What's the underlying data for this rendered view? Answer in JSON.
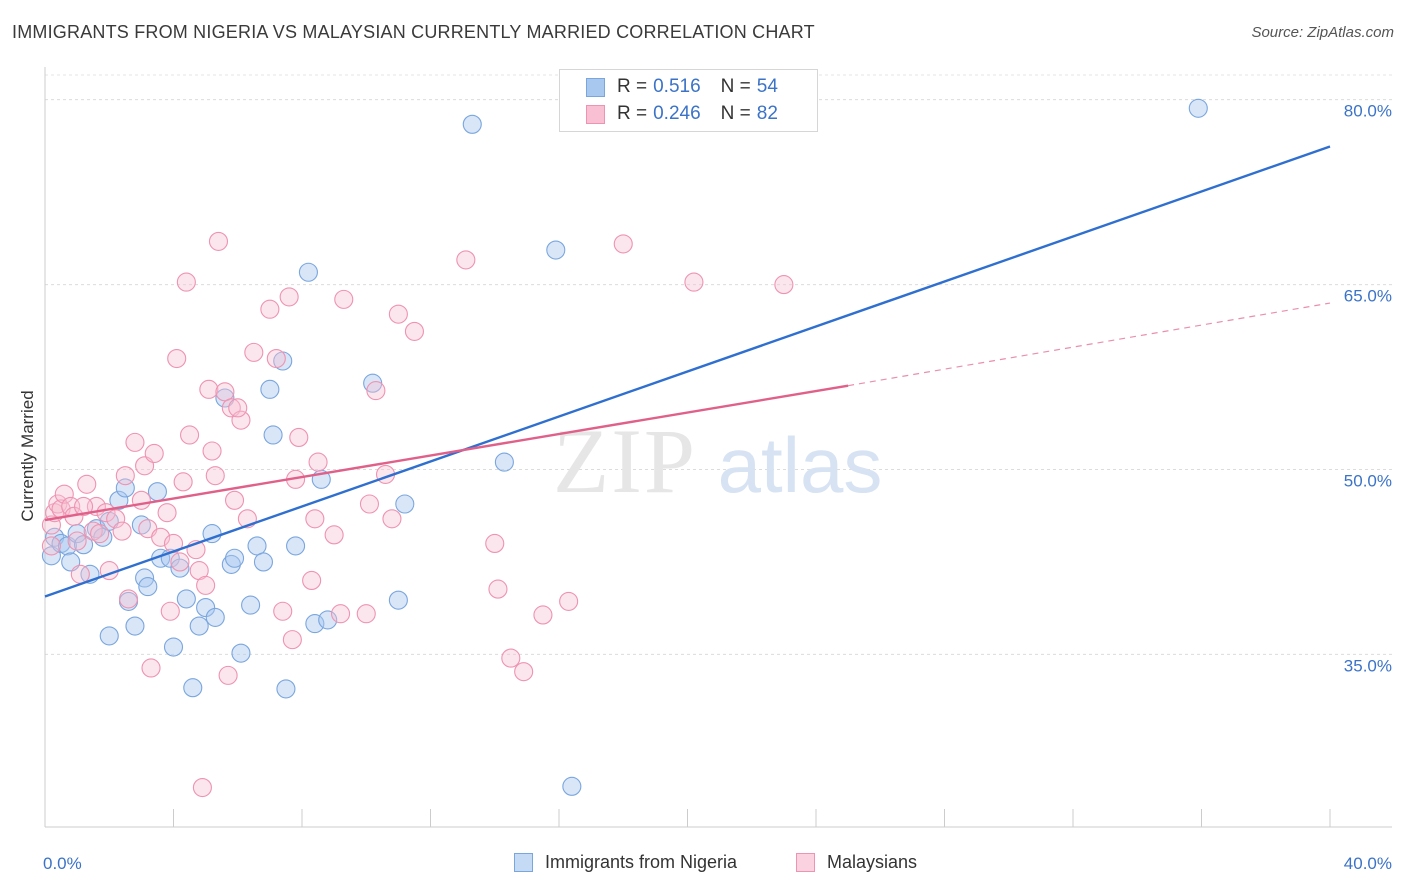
{
  "title": "IMMIGRANTS FROM NIGERIA VS MALAYSIAN CURRENTLY MARRIED CORRELATION CHART",
  "source": "Source: ZipAtlas.com",
  "watermark": {
    "zip": "ZIP",
    "atlas": "atlas"
  },
  "legend_top": [
    {
      "r_label": "R =",
      "r_value": "0.516",
      "n_label": "N =",
      "n_value": "54",
      "color": "#a8c8f0",
      "border": "#7aa6de"
    },
    {
      "r_label": "R =",
      "r_value": "0.246",
      "n_label": "N =",
      "n_value": "82",
      "color": "#f8c0d2",
      "border": "#ee93b1"
    }
  ],
  "legend_bottom": [
    {
      "label": "Immigrants from Nigeria",
      "color": "#c5dbf5",
      "border": "#7aa6de"
    },
    {
      "label": "Malaysians",
      "color": "#fbd3e0",
      "border": "#ee93b1"
    }
  ],
  "chart_data": {
    "type": "scatter",
    "title": "IMMIGRANTS FROM NIGERIA VS MALAYSIAN CURRENTLY MARRIED CORRELATION CHART",
    "xlabel": "",
    "ylabel": "Currently Married",
    "xlim": [
      0,
      40
    ],
    "ylim": [
      21,
      82
    ],
    "x_tick_labels": [
      {
        "value": 0,
        "label": "0.0%"
      },
      {
        "value": 40,
        "label": "40.0%"
      }
    ],
    "y_tick_labels": [
      {
        "value": 35,
        "label": "35.0%"
      },
      {
        "value": 50,
        "label": "50.0%"
      },
      {
        "value": 65,
        "label": "65.0%"
      },
      {
        "value": 80,
        "label": "80.0%"
      }
    ],
    "x_minor_ticks": [
      4,
      8,
      12,
      16,
      20,
      24,
      28,
      32,
      36,
      40
    ],
    "grid": true,
    "legend_position": "top-center",
    "series": [
      {
        "name": "Immigrants from Nigeria",
        "color": "#7aa6de",
        "fill": "rgba(168,200,240,0.45)",
        "trend_color": "#2f6fcf",
        "trend": {
          "x0": 0,
          "y0": 39.7,
          "x1": 40,
          "y1": 76.2
        },
        "points": [
          [
            0.2,
            43.0
          ],
          [
            0.3,
            44.5
          ],
          [
            0.5,
            44.0
          ],
          [
            0.7,
            43.8
          ],
          [
            0.8,
            42.5
          ],
          [
            1.0,
            44.8
          ],
          [
            1.2,
            43.9
          ],
          [
            1.4,
            41.5
          ],
          [
            1.6,
            45.2
          ],
          [
            1.8,
            44.5
          ],
          [
            2.0,
            45.8
          ],
          [
            2.3,
            47.5
          ],
          [
            2.5,
            48.5
          ],
          [
            2.6,
            39.3
          ],
          [
            2.8,
            37.3
          ],
          [
            3.0,
            45.5
          ],
          [
            3.1,
            41.2
          ],
          [
            3.2,
            40.5
          ],
          [
            3.5,
            48.2
          ],
          [
            3.6,
            42.8
          ],
          [
            3.9,
            42.8
          ],
          [
            4.0,
            35.6
          ],
          [
            4.2,
            42.0
          ],
          [
            4.4,
            39.5
          ],
          [
            4.6,
            32.3
          ],
          [
            4.8,
            37.3
          ],
          [
            5.0,
            38.8
          ],
          [
            5.2,
            44.8
          ],
          [
            5.3,
            38.0
          ],
          [
            5.6,
            55.8
          ],
          [
            5.8,
            42.3
          ],
          [
            5.9,
            42.8
          ],
          [
            6.1,
            35.1
          ],
          [
            6.4,
            39.0
          ],
          [
            6.6,
            43.8
          ],
          [
            6.8,
            42.5
          ],
          [
            7.0,
            56.5
          ],
          [
            7.1,
            52.8
          ],
          [
            7.4,
            58.8
          ],
          [
            7.5,
            32.2
          ],
          [
            7.8,
            43.8
          ],
          [
            8.2,
            66.0
          ],
          [
            8.4,
            37.5
          ],
          [
            8.6,
            49.2
          ],
          [
            8.8,
            37.8
          ],
          [
            10.2,
            57.0
          ],
          [
            11.0,
            39.4
          ],
          [
            11.2,
            47.2
          ],
          [
            2.0,
            36.5
          ],
          [
            13.3,
            78.0
          ],
          [
            14.3,
            50.6
          ],
          [
            15.9,
            67.8
          ],
          [
            16.4,
            24.3
          ],
          [
            35.9,
            79.3
          ]
        ]
      },
      {
        "name": "Malaysians",
        "color": "#ee93b1",
        "fill": "rgba(248,192,210,0.40)",
        "trend_color": "#e0608a",
        "trend": {
          "x0": 0,
          "y0": 45.9,
          "x1": 25,
          "y1": 56.8,
          "dash_to_x": 40,
          "dash_to_y": 63.5
        },
        "points": [
          [
            0.2,
            45.5
          ],
          [
            0.3,
            46.5
          ],
          [
            0.4,
            47.2
          ],
          [
            0.5,
            46.8
          ],
          [
            0.6,
            48.0
          ],
          [
            0.8,
            47.0
          ],
          [
            0.9,
            46.2
          ],
          [
            1.0,
            44.2
          ],
          [
            1.1,
            41.5
          ],
          [
            1.3,
            48.8
          ],
          [
            1.5,
            45.0
          ],
          [
            1.6,
            47.0
          ],
          [
            1.7,
            44.8
          ],
          [
            1.9,
            46.5
          ],
          [
            2.0,
            41.8
          ],
          [
            2.2,
            46.0
          ],
          [
            2.4,
            45.0
          ],
          [
            2.5,
            49.5
          ],
          [
            2.6,
            39.5
          ],
          [
            2.8,
            52.2
          ],
          [
            3.0,
            47.5
          ],
          [
            3.1,
            50.3
          ],
          [
            3.2,
            45.2
          ],
          [
            3.3,
            33.9
          ],
          [
            3.4,
            51.3
          ],
          [
            3.6,
            44.5
          ],
          [
            3.8,
            46.5
          ],
          [
            3.9,
            38.5
          ],
          [
            4.0,
            44.0
          ],
          [
            4.1,
            59.0
          ],
          [
            4.2,
            42.5
          ],
          [
            4.3,
            49.0
          ],
          [
            4.4,
            65.2
          ],
          [
            4.5,
            52.8
          ],
          [
            4.7,
            43.5
          ],
          [
            4.8,
            41.8
          ],
          [
            4.9,
            24.2
          ],
          [
            5.0,
            40.6
          ],
          [
            5.1,
            56.5
          ],
          [
            5.2,
            51.5
          ],
          [
            5.3,
            49.5
          ],
          [
            5.4,
            68.5
          ],
          [
            5.6,
            56.3
          ],
          [
            5.7,
            33.3
          ],
          [
            5.8,
            55.0
          ],
          [
            5.9,
            47.5
          ],
          [
            6.1,
            54.0
          ],
          [
            6.3,
            46.0
          ],
          [
            6.5,
            59.5
          ],
          [
            7.0,
            63.0
          ],
          [
            7.2,
            59.0
          ],
          [
            7.4,
            38.5
          ],
          [
            7.6,
            64.0
          ],
          [
            7.7,
            36.2
          ],
          [
            7.8,
            49.2
          ],
          [
            7.9,
            52.6
          ],
          [
            8.3,
            41.0
          ],
          [
            8.4,
            46.0
          ],
          [
            8.5,
            50.6
          ],
          [
            9.0,
            44.7
          ],
          [
            9.2,
            38.3
          ],
          [
            9.3,
            63.8
          ],
          [
            10.0,
            38.3
          ],
          [
            10.1,
            47.2
          ],
          [
            10.3,
            56.4
          ],
          [
            10.6,
            49.6
          ],
          [
            10.8,
            46.0
          ],
          [
            11.0,
            62.6
          ],
          [
            11.5,
            61.2
          ],
          [
            13.1,
            67.0
          ],
          [
            14.0,
            44.0
          ],
          [
            14.1,
            40.3
          ],
          [
            14.5,
            34.7
          ],
          [
            14.9,
            33.6
          ],
          [
            15.5,
            38.2
          ],
          [
            16.3,
            39.3
          ],
          [
            18.0,
            68.3
          ],
          [
            20.2,
            65.2
          ],
          [
            23.0,
            65.0
          ],
          [
            0.2,
            43.8
          ],
          [
            1.2,
            47.0
          ],
          [
            6.0,
            55.0
          ]
        ]
      }
    ]
  }
}
